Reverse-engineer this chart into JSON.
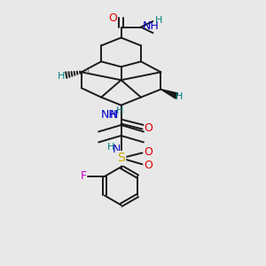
{
  "background_color": "#e8e8e8",
  "bond_color": "#1a1a1a",
  "lw": 1.4,
  "colors": {
    "O": "#dd0000",
    "N": "#0000cc",
    "H": "#008080",
    "S": "#ccaa00",
    "F": "#cc00cc",
    "C": "#1a1a1a"
  },
  "figsize": [
    3.0,
    3.0
  ],
  "dpi": 100
}
